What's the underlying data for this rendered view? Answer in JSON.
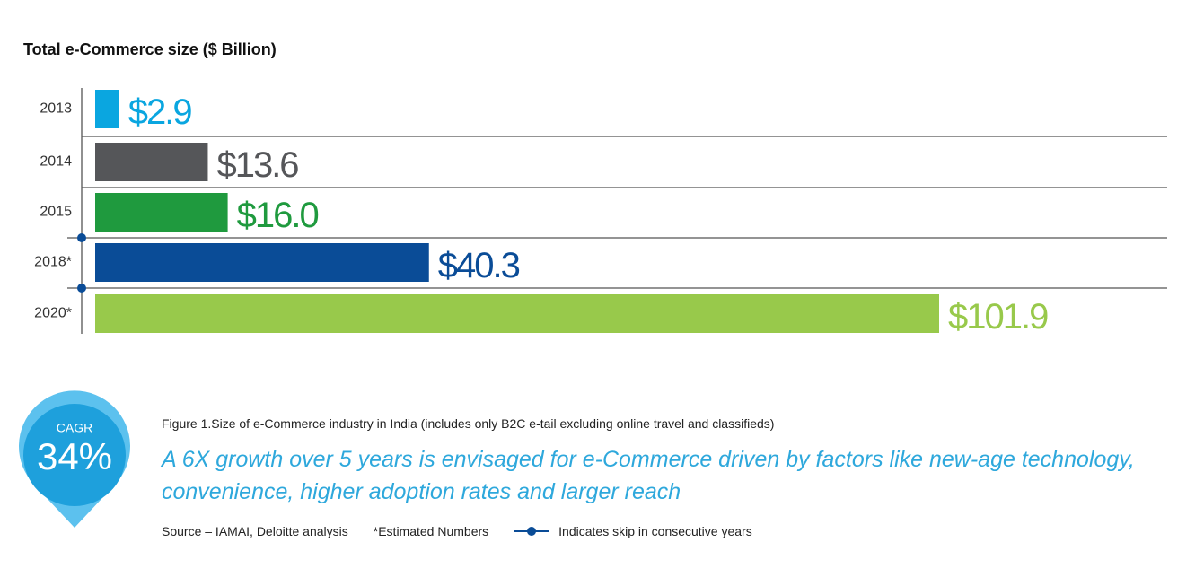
{
  "chart_data": {
    "type": "bar",
    "orientation": "horizontal",
    "title": "Total e-Commerce size ($ Billion)",
    "categories": [
      "2013",
      "2014",
      "2015",
      "2018*",
      "2020*"
    ],
    "values": [
      2.9,
      13.6,
      16.0,
      40.3,
      101.9
    ],
    "value_labels": [
      "$2.9",
      "$13.6",
      "$16.0",
      "$40.3",
      "$101.9"
    ],
    "colors": [
      "#0aa6e0",
      "#555659",
      "#1f9a3e",
      "#0a4c97",
      "#98c94b"
    ],
    "badge": {
      "label": "CAGR",
      "value": "34%"
    },
    "caption": "Figure 1.Size of e-Commerce industry in India (includes only B2C e-tail excluding online travel and classifieds)",
    "headline": "A 6X growth over 5 years is envisaged for e-Commerce driven by factors like new-age technology, convenience, higher adoption rates and larger reach",
    "source": "Source – IAMAI, Deloitte analysis",
    "estimate_note": "*Estimated Numbers",
    "skip_legend": "Indicates skip in consecutive years"
  }
}
